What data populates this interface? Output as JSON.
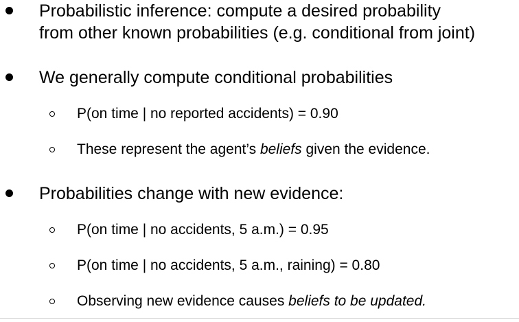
{
  "bullets": {
    "b1": {
      "line1": "Probabilistic inference: compute a desired probability",
      "line2": "from other known probabilities (e.g. conditional from joint)"
    },
    "b2": {
      "text": "We generally compute conditional probabilities",
      "sub1": "P(on time | no reported accidents) = 0.90",
      "sub2_pre": "These represent the agent’s ",
      "sub2_italic": "beliefs",
      "sub2_post": " given the evidence."
    },
    "b3": {
      "text": "Probabilities change with new evidence:",
      "sub1": "P(on time | no accidents, 5 a.m.) = 0.95",
      "sub2": "P(on time | no accidents, 5 a.m., raining) = 0.80",
      "sub3_pre": "Observing new evidence causes ",
      "sub3_italic": "beliefs to be updated."
    }
  }
}
